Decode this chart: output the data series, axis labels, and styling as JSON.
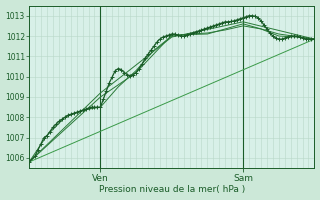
{
  "bg_color": "#cce8d8",
  "plot_bg_color": "#d8f0e8",
  "grid_color": "#b8d8c8",
  "line_color_dark": "#1a5c28",
  "line_color_mid": "#2a7a38",
  "line_color_light": "#3a9a48",
  "ylabel_text": "Pression niveau de la mer( hPa )",
  "xtick_labels": [
    "Ven",
    "Sam"
  ],
  "ylim": [
    1005.5,
    1013.5
  ],
  "yticks": [
    1006,
    1007,
    1008,
    1009,
    1010,
    1011,
    1012,
    1013
  ],
  "xlim": [
    0,
    96
  ],
  "ven_x": 24,
  "sam_x": 72,
  "series1": [
    [
      0,
      1005.8
    ],
    [
      2,
      1006.1
    ],
    [
      3,
      1006.4
    ],
    [
      4,
      1006.7
    ],
    [
      5,
      1007.0
    ],
    [
      6,
      1007.1
    ],
    [
      7,
      1007.3
    ],
    [
      8,
      1007.5
    ],
    [
      9,
      1007.65
    ],
    [
      10,
      1007.8
    ],
    [
      11,
      1007.9
    ],
    [
      12,
      1008.0
    ],
    [
      13,
      1008.1
    ],
    [
      14,
      1008.15
    ],
    [
      15,
      1008.2
    ],
    [
      16,
      1008.25
    ],
    [
      17,
      1008.3
    ],
    [
      18,
      1008.35
    ],
    [
      19,
      1008.4
    ],
    [
      20,
      1008.45
    ],
    [
      21,
      1008.5
    ],
    [
      22,
      1008.5
    ],
    [
      23,
      1008.5
    ],
    [
      24,
      1008.5
    ],
    [
      25,
      1008.9
    ],
    [
      26,
      1009.3
    ],
    [
      27,
      1009.7
    ],
    [
      28,
      1010.0
    ],
    [
      29,
      1010.3
    ],
    [
      30,
      1010.4
    ],
    [
      31,
      1010.35
    ],
    [
      32,
      1010.2
    ],
    [
      33,
      1010.1
    ],
    [
      34,
      1010.05
    ],
    [
      35,
      1010.1
    ],
    [
      36,
      1010.2
    ],
    [
      37,
      1010.4
    ],
    [
      38,
      1010.6
    ],
    [
      39,
      1010.9
    ],
    [
      40,
      1011.1
    ],
    [
      41,
      1011.3
    ],
    [
      42,
      1011.5
    ],
    [
      43,
      1011.7
    ],
    [
      44,
      1011.85
    ],
    [
      45,
      1011.95
    ],
    [
      46,
      1012.0
    ],
    [
      47,
      1012.05
    ],
    [
      48,
      1012.1
    ],
    [
      49,
      1012.1
    ],
    [
      50,
      1012.05
    ],
    [
      51,
      1012.0
    ],
    [
      52,
      1012.0
    ],
    [
      53,
      1012.05
    ],
    [
      54,
      1012.1
    ],
    [
      55,
      1012.15
    ],
    [
      56,
      1012.2
    ],
    [
      57,
      1012.25
    ],
    [
      58,
      1012.3
    ],
    [
      59,
      1012.35
    ],
    [
      60,
      1012.4
    ],
    [
      61,
      1012.45
    ],
    [
      62,
      1012.5
    ],
    [
      63,
      1012.55
    ],
    [
      64,
      1012.6
    ],
    [
      65,
      1012.65
    ],
    [
      66,
      1012.7
    ],
    [
      67,
      1012.7
    ],
    [
      68,
      1012.72
    ],
    [
      69,
      1012.75
    ],
    [
      70,
      1012.8
    ],
    [
      71,
      1012.85
    ],
    [
      72,
      1012.9
    ],
    [
      73,
      1012.95
    ],
    [
      74,
      1013.0
    ],
    [
      75,
      1013.0
    ],
    [
      76,
      1012.98
    ],
    [
      77,
      1012.9
    ],
    [
      78,
      1012.75
    ],
    [
      79,
      1012.55
    ],
    [
      80,
      1012.35
    ],
    [
      81,
      1012.15
    ],
    [
      82,
      1012.0
    ],
    [
      83,
      1011.9
    ],
    [
      84,
      1011.85
    ],
    [
      85,
      1011.85
    ],
    [
      86,
      1011.9
    ],
    [
      87,
      1011.95
    ],
    [
      88,
      1012.0
    ],
    [
      89,
      1012.0
    ],
    [
      90,
      1012.0
    ],
    [
      91,
      1011.95
    ],
    [
      92,
      1011.9
    ],
    [
      93,
      1011.85
    ],
    [
      94,
      1011.85
    ],
    [
      95,
      1011.85
    ],
    [
      96,
      1011.85
    ]
  ],
  "series2": [
    [
      0,
      1005.8
    ],
    [
      6,
      1007.1
    ],
    [
      12,
      1008.0
    ],
    [
      18,
      1008.35
    ],
    [
      24,
      1008.5
    ],
    [
      30,
      1009.5
    ],
    [
      36,
      1010.3
    ],
    [
      42,
      1011.3
    ],
    [
      48,
      1012.0
    ],
    [
      54,
      1012.1
    ],
    [
      60,
      1012.15
    ],
    [
      66,
      1012.3
    ],
    [
      72,
      1012.5
    ],
    [
      78,
      1012.35
    ],
    [
      84,
      1012.0
    ],
    [
      90,
      1011.95
    ],
    [
      96,
      1011.85
    ]
  ],
  "series3": [
    [
      0,
      1005.8
    ],
    [
      24,
      1009.0
    ],
    [
      36,
      1010.2
    ],
    [
      48,
      1012.05
    ],
    [
      60,
      1012.1
    ],
    [
      72,
      1012.6
    ],
    [
      84,
      1012.1
    ],
    [
      96,
      1011.85
    ]
  ],
  "series4": [
    [
      0,
      1005.8
    ],
    [
      24,
      1009.2
    ],
    [
      48,
      1011.95
    ],
    [
      72,
      1012.7
    ],
    [
      96,
      1011.85
    ]
  ],
  "series_linear": [
    [
      0,
      1005.8
    ],
    [
      96,
      1011.85
    ]
  ]
}
